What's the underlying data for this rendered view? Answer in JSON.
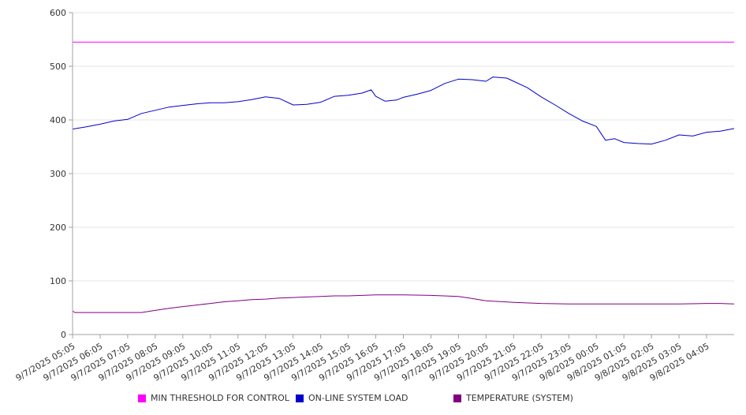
{
  "chart_data": {
    "type": "line",
    "title": "",
    "xlabel": "",
    "ylabel": "",
    "ylim": [
      0,
      600
    ],
    "y_ticks": [
      "0",
      "100",
      "200",
      "300",
      "400",
      "500",
      "600"
    ],
    "x_ticks": [
      "9/7/2025 05:05",
      "9/7/2025 06:05",
      "9/7/2025 07:05",
      "9/7/2025 08:05",
      "9/7/2025 09:05",
      "9/7/2025 10:05",
      "9/7/2025 11:05",
      "9/7/2025 12:05",
      "9/7/2025 13:05",
      "9/7/2025 14:05",
      "9/7/2025 15:05",
      "9/7/2025 16:05",
      "9/7/2025 17:05",
      "9/7/2025 18:05",
      "9/7/2025 19:05",
      "9/7/2025 20:05",
      "9/7/2025 21:05",
      "9/7/2025 22:05",
      "9/7/2025 23:05",
      "9/8/2025 00:05",
      "9/8/2025 01:05",
      "9/8/2025 02:05",
      "9/8/2025 03:05",
      "9/8/2025 04:05"
    ],
    "grid": "horizontal",
    "legend_placement": "bottom",
    "series": [
      {
        "name": "MIN THRESHOLD FOR CONTROL",
        "color": "#ff00ff",
        "points": [
          [
            "9/7/2025 05:05",
            545
          ],
          [
            "9/8/2025 05:05",
            545
          ]
        ]
      },
      {
        "name": "ON-LINE SYSTEM LOAD",
        "color": "#0000cc",
        "points": [
          [
            "9/7/2025 05:05",
            383
          ],
          [
            "9/7/2025 05:35",
            387
          ],
          [
            "9/7/2025 06:05",
            392
          ],
          [
            "9/7/2025 06:35",
            398
          ],
          [
            "9/7/2025 07:05",
            401
          ],
          [
            "9/7/2025 07:35",
            412
          ],
          [
            "9/7/2025 08:05",
            418
          ],
          [
            "9/7/2025 08:35",
            424
          ],
          [
            "9/7/2025 09:05",
            427
          ],
          [
            "9/7/2025 09:35",
            430
          ],
          [
            "9/7/2025 10:05",
            432
          ],
          [
            "9/7/2025 10:35",
            432
          ],
          [
            "9/7/2025 11:05",
            434
          ],
          [
            "9/7/2025 11:35",
            438
          ],
          [
            "9/7/2025 12:05",
            443
          ],
          [
            "9/7/2025 12:35",
            440
          ],
          [
            "9/7/2025 13:05",
            428
          ],
          [
            "9/7/2025 13:35",
            429
          ],
          [
            "9/7/2025 14:05",
            433
          ],
          [
            "9/7/2025 14:35",
            444
          ],
          [
            "9/7/2025 15:05",
            446
          ],
          [
            "9/7/2025 15:35",
            450
          ],
          [
            "9/7/2025 15:55",
            456
          ],
          [
            "9/7/2025 16:05",
            444
          ],
          [
            "9/7/2025 16:25",
            435
          ],
          [
            "9/7/2025 16:50",
            437
          ],
          [
            "9/7/2025 17:05",
            442
          ],
          [
            "9/7/2025 17:35",
            448
          ],
          [
            "9/7/2025 18:05",
            455
          ],
          [
            "9/7/2025 18:35",
            468
          ],
          [
            "9/7/2025 19:05",
            476
          ],
          [
            "9/7/2025 19:35",
            475
          ],
          [
            "9/7/2025 20:05",
            472
          ],
          [
            "9/7/2025 20:20",
            480
          ],
          [
            "9/7/2025 20:50",
            478
          ],
          [
            "9/7/2025 21:05",
            472
          ],
          [
            "9/7/2025 21:35",
            460
          ],
          [
            "9/7/2025 22:05",
            443
          ],
          [
            "9/7/2025 22:35",
            428
          ],
          [
            "9/7/2025 23:05",
            412
          ],
          [
            "9/7/2025 23:35",
            398
          ],
          [
            "9/8/2025 00:05",
            388
          ],
          [
            "9/8/2025 00:25",
            362
          ],
          [
            "9/8/2025 00:45",
            365
          ],
          [
            "9/8/2025 01:05",
            358
          ],
          [
            "9/8/2025 01:35",
            356
          ],
          [
            "9/8/2025 02:05",
            355
          ],
          [
            "9/8/2025 02:35",
            362
          ],
          [
            "9/8/2025 03:05",
            372
          ],
          [
            "9/8/2025 03:35",
            370
          ],
          [
            "9/8/2025 04:05",
            377
          ],
          [
            "9/8/2025 04:35",
            379
          ],
          [
            "9/8/2025 05:05",
            384
          ]
        ]
      },
      {
        "name": "TEMPERATURE (SYSTEM)",
        "color": "#800080",
        "points": [
          [
            "9/7/2025 05:05",
            44
          ],
          [
            "9/7/2025 05:10",
            41
          ],
          [
            "9/7/2025 06:05",
            41
          ],
          [
            "9/7/2025 07:05",
            41
          ],
          [
            "9/7/2025 07:35",
            41
          ],
          [
            "9/7/2025 08:05",
            45
          ],
          [
            "9/7/2025 08:35",
            49
          ],
          [
            "9/7/2025 09:05",
            52
          ],
          [
            "9/7/2025 09:35",
            55
          ],
          [
            "9/7/2025 10:05",
            58
          ],
          [
            "9/7/2025 10:35",
            61
          ],
          [
            "9/7/2025 11:05",
            63
          ],
          [
            "9/7/2025 11:35",
            65
          ],
          [
            "9/7/2025 12:05",
            66
          ],
          [
            "9/7/2025 12:35",
            68
          ],
          [
            "9/7/2025 13:05",
            69
          ],
          [
            "9/7/2025 13:35",
            70
          ],
          [
            "9/7/2025 14:05",
            71
          ],
          [
            "9/7/2025 14:35",
            72
          ],
          [
            "9/7/2025 15:05",
            72
          ],
          [
            "9/7/2025 15:35",
            73
          ],
          [
            "9/7/2025 16:05",
            74
          ],
          [
            "9/7/2025 17:05",
            74
          ],
          [
            "9/7/2025 18:05",
            73
          ],
          [
            "9/7/2025 19:05",
            71
          ],
          [
            "9/7/2025 19:35",
            67
          ],
          [
            "9/7/2025 20:05",
            63
          ],
          [
            "9/7/2025 21:05",
            60
          ],
          [
            "9/7/2025 22:05",
            58
          ],
          [
            "9/7/2025 23:05",
            57
          ],
          [
            "9/8/2025 00:05",
            57
          ],
          [
            "9/8/2025 01:05",
            57
          ],
          [
            "9/8/2025 02:05",
            57
          ],
          [
            "9/8/2025 03:05",
            57
          ],
          [
            "9/8/2025 04:05",
            58
          ],
          [
            "9/8/2025 04:35",
            58
          ],
          [
            "9/8/2025 05:05",
            57
          ]
        ]
      }
    ]
  },
  "colors": {
    "axis": "#a0a0a0",
    "grid": "#e6e6e6",
    "text": "#333333"
  }
}
